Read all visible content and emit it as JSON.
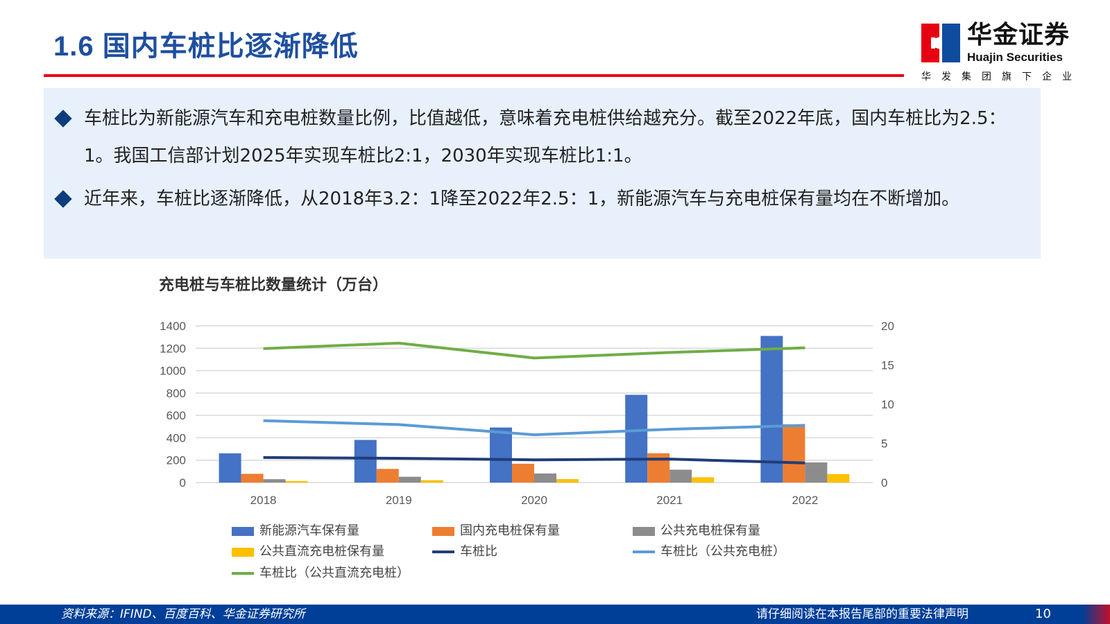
{
  "header": {
    "title": "1.6 国内车桩比逐渐降低",
    "logo_cn": "华金证券",
    "logo_en": "Huajin Securities",
    "logo_sub": "华发集团旗下企业"
  },
  "bullets": [
    "车桩比为新能源汽车和充电桩数量比例，比值越低，意味着充电桩供给越充分。截至2022年底，国内车桩比为2.5：1。我国工信部计划2025年实现车桩比2:1，2030年实现车桩比1:1。",
    "近年来，车桩比逐渐降低，从2018年3.2：1降至2022年2.5：1，新能源汽车与充电桩保有量均在不断增加。"
  ],
  "chart_data": {
    "type": "bar+line",
    "title": "充电桩与车桩比数量统计（万台）",
    "categories": [
      "2018",
      "2019",
      "2020",
      "2021",
      "2022"
    ],
    "ylim": [
      0,
      1400
    ],
    "yticks": [
      "0",
      "200",
      "400",
      "600",
      "800",
      "1000",
      "1200",
      "1400"
    ],
    "y2lim": [
      0,
      20
    ],
    "y2ticks": [
      "0",
      "5",
      "10",
      "15",
      "20"
    ],
    "grid": true,
    "legend_position": "bottom",
    "bar_series": [
      {
        "name": "新能源汽车保有量",
        "color": "#4472c4",
        "values": [
          261,
          381,
          492,
          784,
          1310
        ]
      },
      {
        "name": "国内充电桩保有量",
        "color": "#ed7d31",
        "values": [
          78,
          122,
          168,
          262,
          521
        ]
      },
      {
        "name": "公共充电桩保有量",
        "color": "#8c8c8c",
        "values": [
          30,
          52,
          81,
          115,
          180
        ]
      },
      {
        "name": "公共直流充电桩保有量",
        "color": "#ffc000",
        "values": [
          14,
          21,
          31,
          47,
          76
        ]
      }
    ],
    "line_series": [
      {
        "name": "车桩比",
        "color": "#1f3d7a",
        "axis": "right",
        "values": [
          3.2,
          3.1,
          2.9,
          3.0,
          2.5
        ]
      },
      {
        "name": "车桩比（公共充电桩）",
        "color": "#5b9bd5",
        "axis": "right",
        "values": [
          7.9,
          7.4,
          6.1,
          6.8,
          7.3
        ]
      },
      {
        "name": "车桩比（公共直流充电桩）",
        "color": "#70ad47",
        "axis": "right",
        "values": [
          17.1,
          17.8,
          15.9,
          16.6,
          17.2
        ]
      }
    ]
  },
  "footer": {
    "source": "资料来源：IFIND、百度百科、华金证券研究所",
    "notice": "请仔细阅读在本报告尾部的重要法律声明",
    "page": "10"
  }
}
